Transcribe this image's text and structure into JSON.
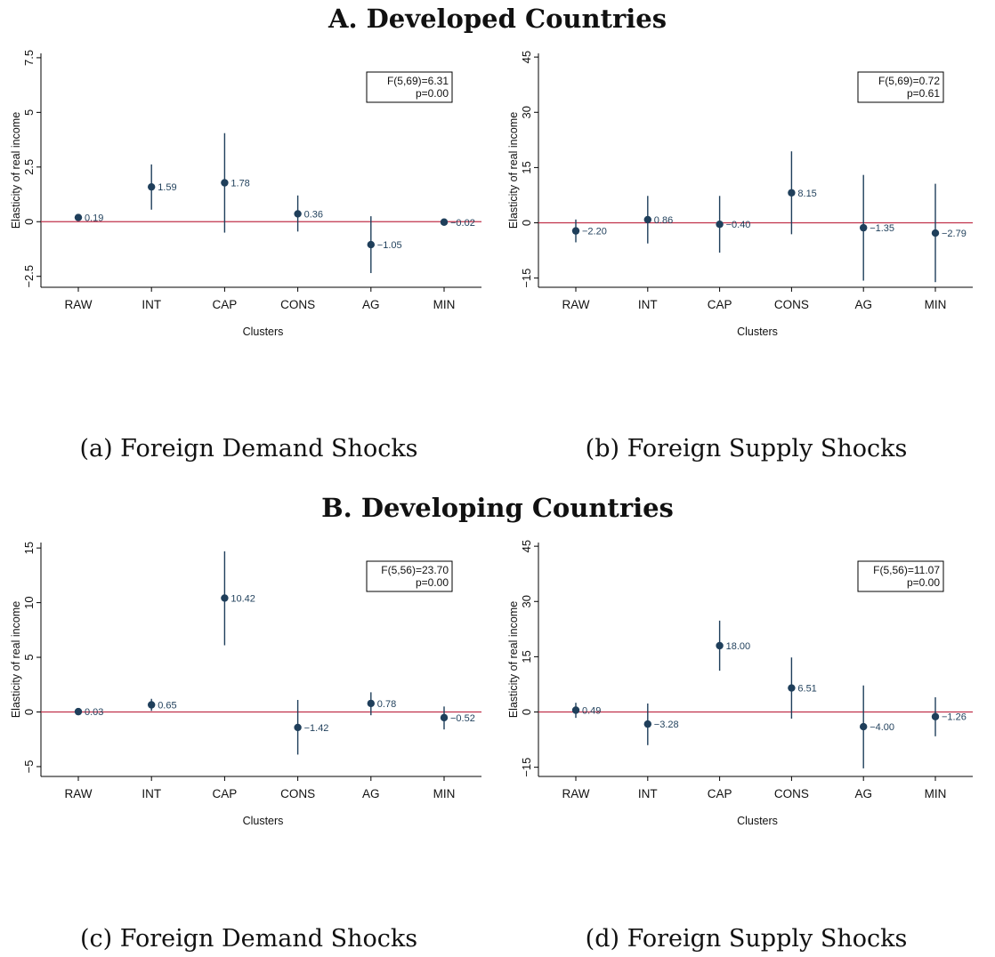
{
  "titles": {
    "top": "A. Developed Countries",
    "bottom": "B. Developing Countries"
  },
  "captions": {
    "a": "(a) Foreign Demand Shocks",
    "b": "(b) Foreign Supply Shocks",
    "c": "(c) Foreign Demand Shocks",
    "d": "(d) Foreign Supply Shocks"
  },
  "colors": {
    "point": "#1f3f5b",
    "zero_line": "#c0314a",
    "axis": "#000000"
  },
  "chart_data": [
    {
      "type": "scatter",
      "panel": "a",
      "xlabel": "Clusters",
      "ylabel": "Elasticity of real income",
      "categories": [
        "RAW",
        "INT",
        "CAP",
        "CONS",
        "AG",
        "MIN"
      ],
      "values": [
        0.19,
        1.59,
        1.78,
        0.36,
        -1.05,
        -0.02
      ],
      "ci_low": [
        0.05,
        0.55,
        -0.5,
        -0.45,
        -2.35,
        -0.08
      ],
      "ci_high": [
        0.33,
        2.62,
        4.05,
        1.2,
        0.25,
        0.04
      ],
      "value_labels": [
        "0.19",
        "1.59",
        "1.78",
        "0.36",
        "−1.05",
        "−0.02"
      ],
      "yticks": [
        -2.5,
        0,
        2.5,
        5,
        7.5
      ],
      "ytick_labels": [
        "−2.5",
        "0",
        "2.5",
        "5",
        "7.5"
      ],
      "ylim": [
        -3.0,
        7.7
      ],
      "stat_line1": "F(5,69)=6.31",
      "stat_line2": "p=0.00",
      "zero_line": 0,
      "grid": false
    },
    {
      "type": "scatter",
      "panel": "b",
      "xlabel": "Clusters",
      "ylabel": "Elasticity of real income",
      "categories": [
        "RAW",
        "INT",
        "CAP",
        "CONS",
        "AG",
        "MIN"
      ],
      "values": [
        -2.2,
        0.86,
        -0.4,
        8.15,
        -1.35,
        -2.79
      ],
      "ci_low": [
        -5.3,
        -5.6,
        -8.1,
        -3.1,
        -15.7,
        -16.1
      ],
      "ci_high": [
        0.9,
        7.3,
        7.3,
        19.4,
        13.0,
        10.6
      ],
      "value_labels": [
        "−2.20",
        "0.86",
        "−0.40",
        "8.15",
        "−1.35",
        "−2.79"
      ],
      "yticks": [
        -15,
        0,
        15,
        30,
        45
      ],
      "ytick_labels": [
        "−15",
        "0",
        "15",
        "30",
        "45"
      ],
      "ylim": [
        -17.5,
        46
      ],
      "stat_line1": "F(5,69)=0.72",
      "stat_line2": "p=0.61",
      "zero_line": 0,
      "grid": false
    },
    {
      "type": "scatter",
      "panel": "c",
      "xlabel": "Clusters",
      "ylabel": "Elasticity of real income",
      "categories": [
        "RAW",
        "INT",
        "CAP",
        "CONS",
        "AG",
        "MIN"
      ],
      "values": [
        0.03,
        0.65,
        10.42,
        -1.42,
        0.78,
        -0.52
      ],
      "ci_low": [
        -0.05,
        0.1,
        6.1,
        -3.9,
        -0.3,
        -1.6
      ],
      "ci_high": [
        0.11,
        1.2,
        14.7,
        1.1,
        1.8,
        0.5
      ],
      "value_labels": [
        "0.03",
        "0.65",
        "10.42",
        "−1.42",
        "0.78",
        "−0.52"
      ],
      "yticks": [
        -5,
        0,
        5,
        10,
        15
      ],
      "ytick_labels": [
        "−5",
        "0",
        "5",
        "10",
        "15"
      ],
      "ylim": [
        -5.9,
        15.5
      ],
      "stat_line1": "F(5,56)=23.70",
      "stat_line2": "p=0.00",
      "zero_line": 0,
      "grid": false
    },
    {
      "type": "scatter",
      "panel": "d",
      "xlabel": "Clusters",
      "ylabel": "Elasticity of real income",
      "categories": [
        "RAW",
        "INT",
        "CAP",
        "CONS",
        "AG",
        "MIN"
      ],
      "values": [
        0.49,
        -3.28,
        18.0,
        6.51,
        -4.0,
        -1.26
      ],
      "ci_low": [
        -1.6,
        -9.0,
        11.2,
        -1.8,
        -15.3,
        -6.6
      ],
      "ci_high": [
        2.5,
        2.3,
        24.8,
        14.8,
        7.2,
        4.0
      ],
      "value_labels": [
        "0.49",
        "−3.28",
        "18.00",
        "6.51",
        "−4.00",
        "−1.26"
      ],
      "yticks": [
        -15,
        0,
        15,
        30,
        45
      ],
      "ytick_labels": [
        "−15",
        "0",
        "15",
        "30",
        "45"
      ],
      "ylim": [
        -17.5,
        46
      ],
      "stat_line1": "F(5,56)=11.07",
      "stat_line2": "p=0.00",
      "zero_line": 0,
      "grid": false
    }
  ]
}
